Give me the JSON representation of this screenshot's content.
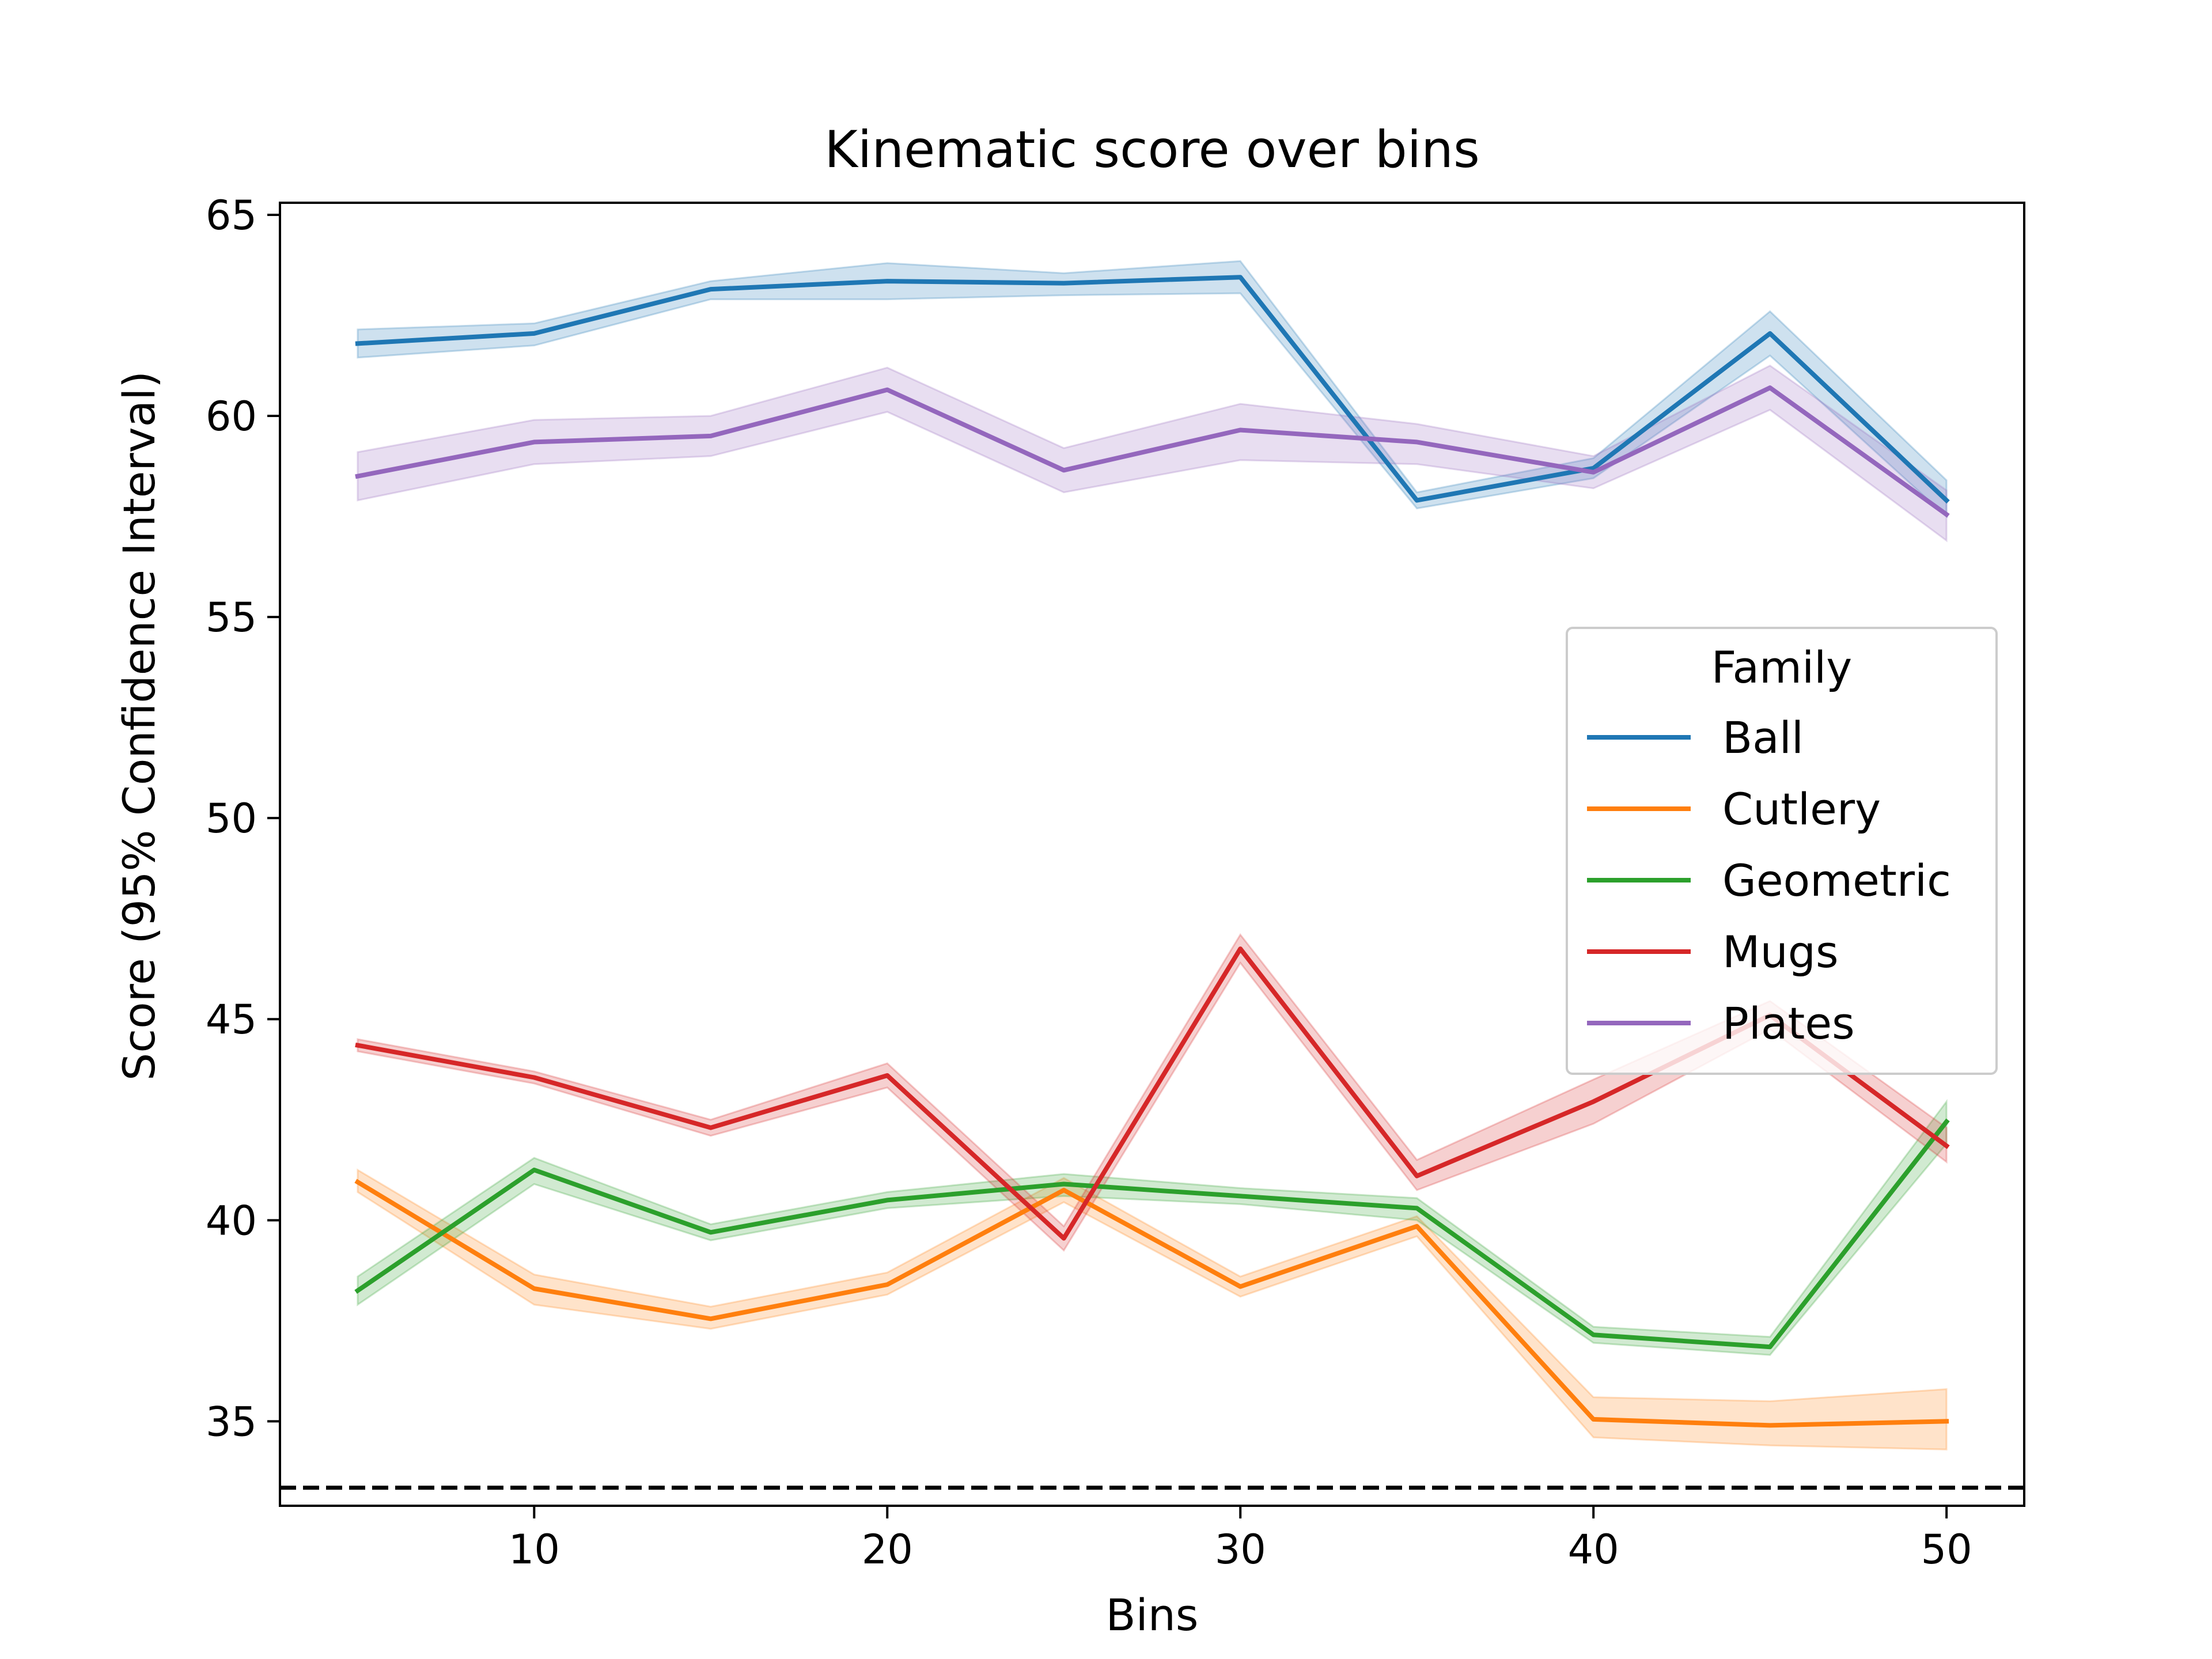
{
  "chart_data": {
    "type": "line",
    "title": "Kinematic score over bins",
    "xlabel": "Bins",
    "ylabel": "Score (95% Confidence Interval)",
    "xlim": [
      2.8,
      52.2
    ],
    "ylim": [
      32.9,
      65.3
    ],
    "xticks": [
      10,
      20,
      30,
      40,
      50
    ],
    "yticks": [
      35,
      40,
      45,
      50,
      55,
      60,
      65
    ],
    "grid": false,
    "legend": {
      "title": "Family",
      "position": "center-right"
    },
    "reference_line": {
      "y": 33.35,
      "style": "dashed",
      "color": "#000000"
    },
    "x": [
      5,
      10,
      15,
      20,
      25,
      30,
      35,
      40,
      45,
      50
    ],
    "series": [
      {
        "name": "Ball",
        "color": "#1f77b4",
        "values": [
          61.8,
          62.05,
          63.15,
          63.35,
          63.3,
          63.45,
          57.9,
          58.7,
          62.05,
          57.9
        ],
        "ci_lower": [
          61.45,
          61.75,
          62.9,
          62.9,
          63.0,
          63.05,
          57.7,
          58.45,
          61.5,
          57.5
        ],
        "ci_upper": [
          62.15,
          62.3,
          63.35,
          63.8,
          63.55,
          63.85,
          58.1,
          58.95,
          62.6,
          58.4
        ]
      },
      {
        "name": "Cutlery",
        "color": "#ff7f0e",
        "values": [
          40.95,
          38.3,
          37.55,
          38.4,
          40.75,
          38.35,
          39.85,
          35.05,
          34.9,
          35.0
        ],
        "ci_lower": [
          40.7,
          37.9,
          37.3,
          38.15,
          40.45,
          38.1,
          39.6,
          34.6,
          34.4,
          34.3
        ],
        "ci_upper": [
          41.25,
          38.65,
          37.85,
          38.7,
          41.05,
          38.6,
          40.1,
          35.6,
          35.5,
          35.8
        ]
      },
      {
        "name": "Geometric",
        "color": "#2ca02c",
        "values": [
          38.25,
          41.25,
          39.7,
          40.5,
          40.9,
          40.6,
          40.3,
          37.15,
          36.85,
          42.45
        ],
        "ci_lower": [
          37.9,
          40.9,
          39.5,
          40.3,
          40.6,
          40.4,
          40.0,
          36.95,
          36.65,
          41.9
        ],
        "ci_upper": [
          38.6,
          41.55,
          39.9,
          40.7,
          41.15,
          40.8,
          40.55,
          37.35,
          37.1,
          42.95
        ]
      },
      {
        "name": "Mugs",
        "color": "#d62728",
        "values": [
          44.35,
          43.55,
          42.3,
          43.6,
          39.55,
          46.75,
          41.1,
          42.95,
          45.1,
          41.85
        ],
        "ci_lower": [
          44.2,
          43.4,
          42.1,
          43.3,
          39.25,
          46.4,
          40.75,
          42.4,
          44.75,
          41.45
        ],
        "ci_upper": [
          44.5,
          43.7,
          42.5,
          43.9,
          39.85,
          47.1,
          41.5,
          43.5,
          45.45,
          42.3
        ]
      },
      {
        "name": "Plates",
        "color": "#9467bd",
        "values": [
          58.5,
          59.35,
          59.5,
          60.65,
          58.65,
          59.65,
          59.35,
          58.6,
          60.7,
          57.55
        ],
        "ci_lower": [
          57.9,
          58.8,
          59.0,
          60.1,
          58.1,
          58.9,
          58.8,
          58.2,
          60.15,
          56.9
        ],
        "ci_upper": [
          59.1,
          59.9,
          60.0,
          61.2,
          59.2,
          60.3,
          59.8,
          59.0,
          61.25,
          58.15
        ]
      }
    ]
  }
}
